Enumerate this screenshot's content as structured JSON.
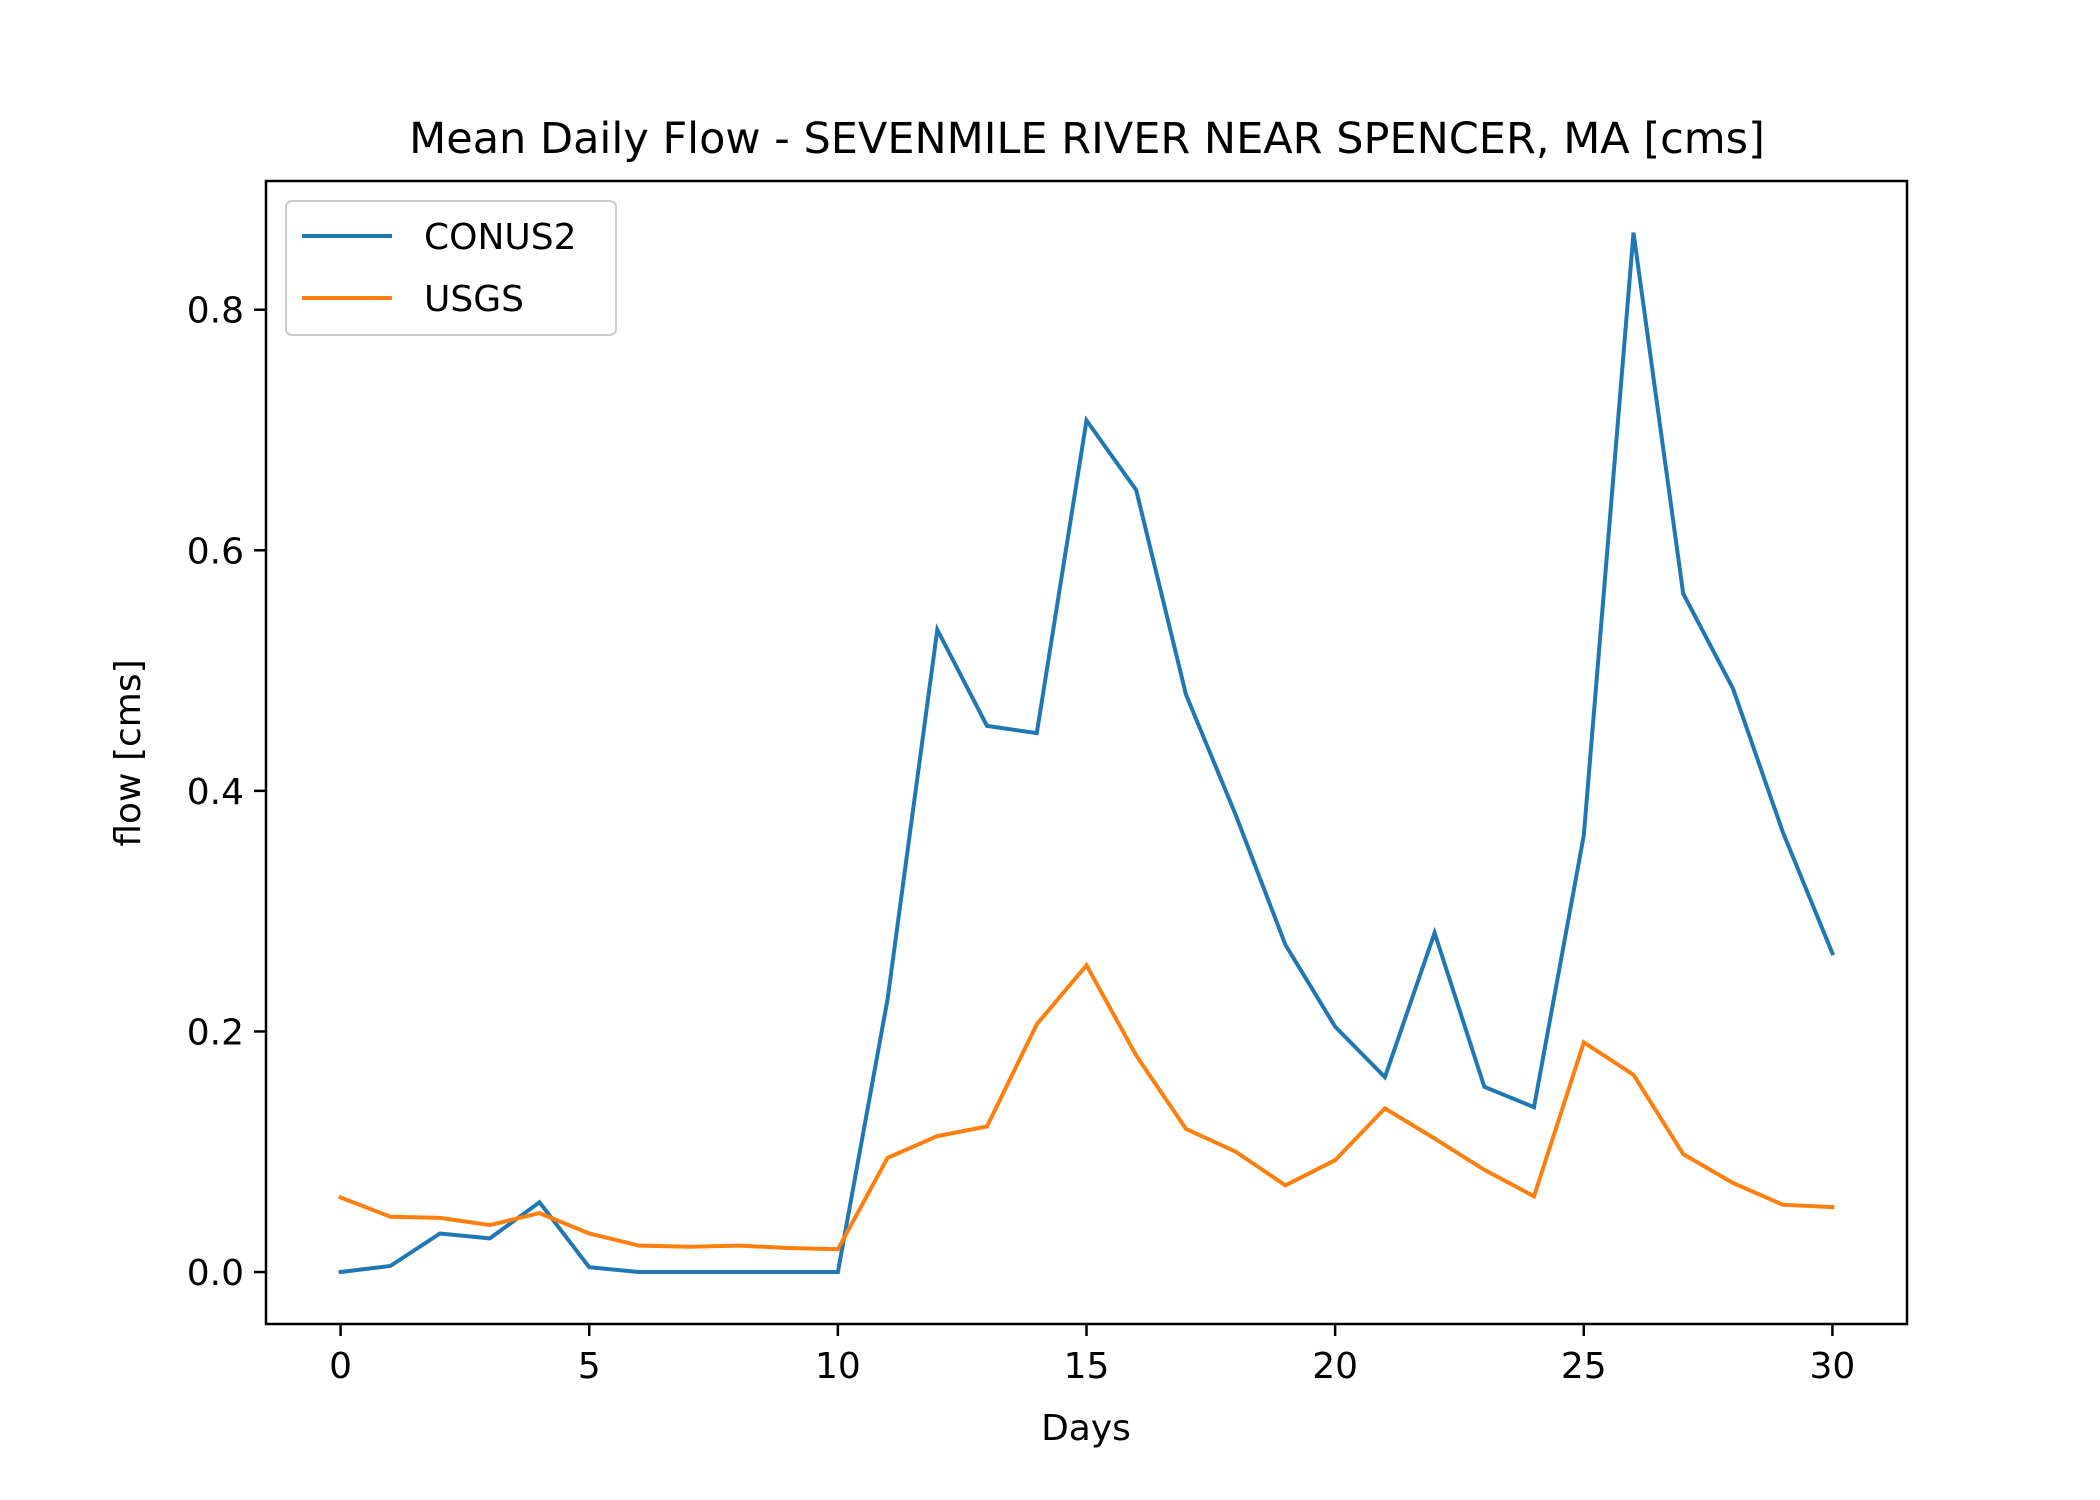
{
  "chart_data": {
    "type": "line",
    "title": "Mean Daily Flow - SEVENMILE RIVER NEAR SPENCER, MA [cms]",
    "xlabel": "Days",
    "ylabel": "flow [cms]",
    "xlim": [
      -1.5,
      31.5
    ],
    "ylim": [
      -0.0432,
      0.907
    ],
    "xticks": [
      0,
      5,
      10,
      15,
      20,
      25,
      30
    ],
    "xtick_labels": [
      "0",
      "5",
      "10",
      "15",
      "20",
      "25",
      "30"
    ],
    "yticks": [
      0.0,
      0.2,
      0.4,
      0.6,
      0.8
    ],
    "ytick_labels": [
      "0.0",
      "0.2",
      "0.4",
      "0.6",
      "0.8"
    ],
    "grid": false,
    "legend": "top-left",
    "x": [
      0,
      1,
      2,
      3,
      4,
      5,
      6,
      7,
      8,
      9,
      10,
      11,
      12,
      13,
      14,
      15,
      16,
      17,
      18,
      19,
      20,
      21,
      22,
      23,
      24,
      25,
      26,
      27,
      28,
      29,
      30
    ],
    "series": [
      {
        "name": "CONUS2",
        "color": "#1f77b4",
        "values": [
          0.0,
          0.005,
          0.032,
          0.028,
          0.058,
          0.004,
          0.0,
          0.0,
          0.0,
          0.0,
          0.0,
          0.227,
          0.534,
          0.454,
          0.448,
          0.708,
          0.65,
          0.48,
          0.38,
          0.272,
          0.204,
          0.162,
          0.282,
          0.154,
          0.137,
          0.363,
          0.864,
          0.564,
          0.485,
          0.366,
          0.265
        ]
      },
      {
        "name": "USGS",
        "color": "#ff7f0e",
        "values": [
          0.062,
          0.046,
          0.045,
          0.039,
          0.049,
          0.032,
          0.022,
          0.021,
          0.022,
          0.02,
          0.019,
          0.095,
          0.113,
          0.121,
          0.206,
          0.255,
          0.18,
          0.119,
          0.1,
          0.072,
          0.093,
          0.136,
          0.111,
          0.085,
          0.063,
          0.191,
          0.164,
          0.098,
          0.074,
          0.056,
          0.054
        ]
      }
    ]
  }
}
